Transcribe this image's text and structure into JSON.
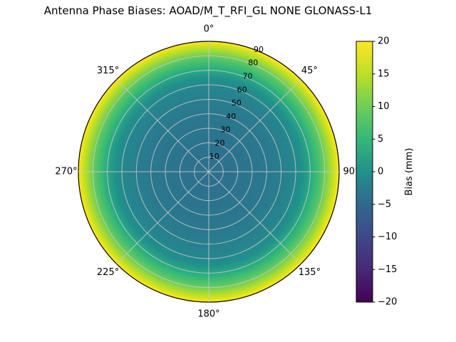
{
  "title": "Antenna Phase Biases: AOAD/M_T_RFI_GL NONE GLONASS-L1",
  "chart_data": {
    "type": "heatmap",
    "projection": "polar",
    "title": "Antenna Phase Biases: AOAD/M_T_RFI_GL NONE GLONASS-L1",
    "angle_labels": [
      "0°",
      "45°",
      "90°",
      "135°",
      "180°",
      "225°",
      "270°",
      "315°"
    ],
    "angle_label_angles_deg": [
      0,
      45,
      90,
      135,
      180,
      225,
      270,
      315
    ],
    "radial_ticks": [
      10,
      20,
      30,
      40,
      50,
      60,
      70,
      80,
      90
    ],
    "radial_label_angle_deg": 22.5,
    "radial_max": 90,
    "colorbar": {
      "label": "Bias (mm)",
      "ticks": [
        20,
        15,
        10,
        5,
        0,
        -5,
        -10,
        -15,
        -20
      ],
      "min": -20,
      "max": 20,
      "colormap": "viridis"
    },
    "radial_profile": [
      {
        "zenith_deg": 0,
        "bias_mm": -5
      },
      {
        "zenith_deg": 20,
        "bias_mm": -4.5
      },
      {
        "zenith_deg": 40,
        "bias_mm": -3.5
      },
      {
        "zenith_deg": 55,
        "bias_mm": -2
      },
      {
        "zenith_deg": 65,
        "bias_mm": 0
      },
      {
        "zenith_deg": 72,
        "bias_mm": 3
      },
      {
        "zenith_deg": 78,
        "bias_mm": 7
      },
      {
        "zenith_deg": 84,
        "bias_mm": 12
      },
      {
        "zenith_deg": 88,
        "bias_mm": 17
      },
      {
        "zenith_deg": 90,
        "bias_mm": 20
      }
    ],
    "polar_gradient_stops": [
      {
        "offset": 0.0,
        "color": "#2d6e8e"
      },
      {
        "offset": 0.45,
        "color": "#2a788e"
      },
      {
        "offset": 0.62,
        "color": "#26838e"
      },
      {
        "offset": 0.72,
        "color": "#21918c"
      },
      {
        "offset": 0.8,
        "color": "#2db27d"
      },
      {
        "offset": 0.87,
        "color": "#58c765"
      },
      {
        "offset": 0.93,
        "color": "#a2da37"
      },
      {
        "offset": 0.97,
        "color": "#d8e219"
      },
      {
        "offset": 1.0,
        "color": "#fde725"
      }
    ],
    "colorbar_gradient_stops": [
      {
        "offset": 0.0,
        "color": "#fde725"
      },
      {
        "offset": 0.125,
        "color": "#bddf26"
      },
      {
        "offset": 0.25,
        "color": "#6ece58"
      },
      {
        "offset": 0.375,
        "color": "#35b779"
      },
      {
        "offset": 0.5,
        "color": "#21918c"
      },
      {
        "offset": 0.625,
        "color": "#31688e"
      },
      {
        "offset": 0.75,
        "color": "#3e4989"
      },
      {
        "offset": 0.875,
        "color": "#482878"
      },
      {
        "offset": 1.0,
        "color": "#440154"
      }
    ],
    "grid_color": "#c9c9c9",
    "outline_color": "#000000",
    "legend_position": "right-colorbar",
    "grid": true
  }
}
